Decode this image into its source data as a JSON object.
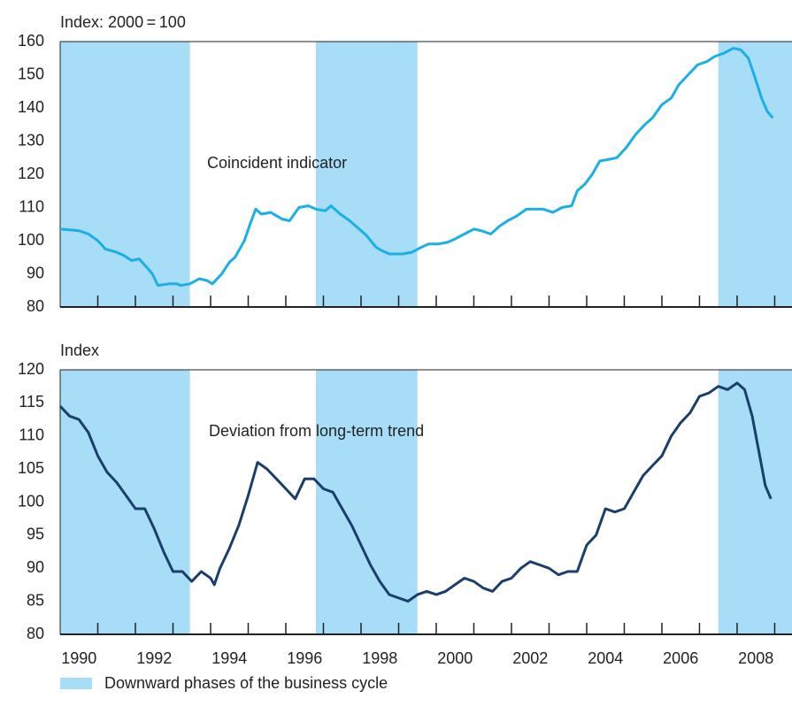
{
  "chart_data": [
    {
      "type": "line",
      "ylabel": "Index: 2000 = 100",
      "xlim": [
        1990,
        2009.46
      ],
      "ylim": [
        80,
        160
      ],
      "yticks": [
        80,
        90,
        100,
        110,
        120,
        130,
        140,
        150,
        160
      ],
      "xtick_marks": [
        1991,
        1992,
        1993,
        1994,
        1995,
        1996,
        1997,
        1998,
        1999,
        2000,
        2001,
        2002,
        2003,
        2004,
        2005,
        2006,
        2007,
        2008,
        2009
      ],
      "shaded": [
        [
          1990,
          1993.45
        ],
        [
          1996.8,
          1999.5
        ],
        [
          2007.5,
          2009.46
        ]
      ],
      "shade_color": "#a8ddf7",
      "x": [
        1990.0,
        1990.5,
        1990.75,
        1991.0,
        1991.2,
        1991.5,
        1991.7,
        1991.9,
        1992.1,
        1992.3,
        1992.45,
        1992.6,
        1992.9,
        1993.1,
        1993.2,
        1993.45,
        1993.7,
        1993.9,
        1994.05,
        1994.3,
        1994.5,
        1994.65,
        1994.9,
        1995.05,
        1995.2,
        1995.35,
        1995.6,
        1995.9,
        1996.1,
        1996.35,
        1996.6,
        1996.8,
        1997.05,
        1997.2,
        1997.45,
        1997.7,
        1997.95,
        1998.15,
        1998.4,
        1998.55,
        1998.75,
        1999.1,
        1999.35,
        1999.6,
        1999.8,
        2000.05,
        2000.3,
        2000.5,
        2000.75,
        2001.0,
        2001.2,
        2001.45,
        2001.7,
        2001.9,
        2002.15,
        2002.4,
        2002.65,
        2002.85,
        2003.1,
        2003.35,
        2003.6,
        2003.75,
        2003.95,
        2004.15,
        2004.35,
        2004.6,
        2004.8,
        2005.05,
        2005.3,
        2005.55,
        2005.75,
        2006.0,
        2006.25,
        2006.45,
        2006.7,
        2006.95,
        2007.2,
        2007.4,
        2007.65,
        2007.9,
        2008.1,
        2008.3,
        2008.45,
        2008.65,
        2008.8,
        2008.95
      ],
      "series": [
        {
          "name": "Coincident indicator",
          "color": "#1ab0e6",
          "values": [
            103.5,
            103,
            102,
            100,
            97.5,
            96.5,
            95.5,
            94,
            94.5,
            92,
            90,
            86.5,
            87,
            87,
            86.5,
            87,
            88.5,
            88,
            87,
            90,
            93.5,
            95,
            100,
            105,
            109.5,
            108,
            108.5,
            106.5,
            106,
            110,
            110.5,
            109.5,
            109,
            110.5,
            108,
            106,
            103.5,
            101.5,
            98,
            97,
            96,
            96,
            96.5,
            98,
            99,
            99,
            99.5,
            100.5,
            102,
            103.5,
            103,
            102,
            104.5,
            106,
            107.5,
            109.5,
            109.5,
            109.5,
            108.5,
            110,
            110.5,
            115,
            117,
            120,
            124,
            124.5,
            125,
            128,
            132,
            135,
            137,
            141,
            143,
            147,
            150,
            153,
            154,
            155.5,
            156.5,
            158,
            157.5,
            155,
            150,
            143,
            139,
            137
          ]
        }
      ]
    },
    {
      "type": "line",
      "ylabel": "Index",
      "xlim": [
        1990,
        2009.46
      ],
      "ylim": [
        80,
        120
      ],
      "yticks": [
        80,
        85,
        90,
        95,
        100,
        105,
        110,
        115,
        120
      ],
      "xticks": [
        {
          "value": 1990.5,
          "label": "1990"
        },
        {
          "value": 1992.5,
          "label": "1992"
        },
        {
          "value": 1994.5,
          "label": "1994"
        },
        {
          "value": 1996.5,
          "label": "1996"
        },
        {
          "value": 1998.5,
          "label": "1998"
        },
        {
          "value": 2000.5,
          "label": "2000"
        },
        {
          "value": 2002.5,
          "label": "2002"
        },
        {
          "value": 2004.5,
          "label": "2004"
        },
        {
          "value": 2006.5,
          "label": "2006"
        },
        {
          "value": 2008.5,
          "label": "2008"
        }
      ],
      "xtick_marks": [
        1991,
        1992,
        1993,
        1994,
        1995,
        1996,
        1997,
        1998,
        1999,
        2000,
        2001,
        2002,
        2003,
        2004,
        2005,
        2006,
        2007,
        2008,
        2009
      ],
      "shaded": [
        [
          1990,
          1993.45
        ],
        [
          1996.8,
          1999.5
        ],
        [
          2007.5,
          2009.46
        ]
      ],
      "shade_color": "#a8ddf7",
      "x": [
        1990.0,
        1990.25,
        1990.5,
        1990.75,
        1991.0,
        1991.25,
        1991.5,
        1991.75,
        1992.0,
        1992.25,
        1992.5,
        1992.75,
        1993.0,
        1993.25,
        1993.5,
        1993.75,
        1994.0,
        1994.1,
        1994.25,
        1994.5,
        1994.75,
        1995.0,
        1995.25,
        1995.5,
        1995.75,
        1996.0,
        1996.25,
        1996.5,
        1996.75,
        1997.0,
        1997.25,
        1997.5,
        1997.75,
        1998.0,
        1998.25,
        1998.5,
        1998.75,
        1999.0,
        1999.25,
        1999.5,
        1999.75,
        2000.0,
        2000.25,
        2000.5,
        2000.75,
        2001.0,
        2001.25,
        2001.5,
        2001.75,
        2002.0,
        2002.25,
        2002.5,
        2002.75,
        2003.0,
        2003.25,
        2003.5,
        2003.75,
        2004.0,
        2004.25,
        2004.5,
        2004.75,
        2005.0,
        2005.25,
        2005.5,
        2005.75,
        2006.0,
        2006.25,
        2006.5,
        2006.75,
        2007.0,
        2007.25,
        2007.5,
        2007.75,
        2008.0,
        2008.2,
        2008.4,
        2008.6,
        2008.75,
        2008.9
      ],
      "series": [
        {
          "name": "Deviation from long-term trend",
          "color": "#1b3f6b",
          "values": [
            114.5,
            113,
            112.5,
            110.5,
            107,
            104.5,
            103,
            101,
            99,
            99,
            96,
            92.5,
            89.5,
            89.5,
            88,
            89.5,
            88.5,
            87.5,
            90,
            93,
            96.5,
            101,
            106,
            105,
            103.5,
            102,
            100.5,
            103.5,
            103.5,
            102,
            101.5,
            99,
            96.5,
            93.5,
            90.5,
            88,
            86,
            85.5,
            85,
            86,
            86.5,
            86,
            86.5,
            87.5,
            88.5,
            88,
            87,
            86.5,
            88,
            88.5,
            90,
            91,
            90.5,
            90,
            89,
            89.5,
            89.5,
            93.5,
            95,
            99,
            98.5,
            99,
            101.5,
            104,
            105.5,
            107,
            110,
            112,
            113.5,
            116,
            116.5,
            117.5,
            117,
            118,
            117,
            113,
            107,
            102.5,
            100.5
          ]
        }
      ]
    }
  ],
  "legend": {
    "label": "Downward phases of the business cycle",
    "color": "#a8ddf7"
  }
}
